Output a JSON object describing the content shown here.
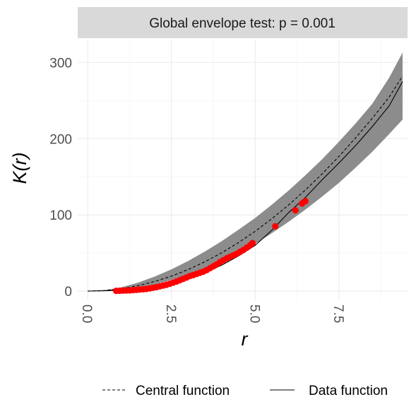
{
  "chart_data": {
    "type": "line",
    "title": "Global envelope test: p = 0.001",
    "xlabel": "r",
    "ylabel": "K(r)",
    "xlim": [
      -0.3,
      9.55
    ],
    "ylim": [
      -12,
      330
    ],
    "x_ticks": [
      0,
      2.5,
      5,
      7.5
    ],
    "x_tick_labels": [
      "0.0",
      "2.5",
      "5.0",
      "7.5"
    ],
    "y_ticks": [
      0,
      100,
      200,
      300
    ],
    "y_tick_labels": [
      "0",
      "100",
      "200",
      "300"
    ],
    "grid": true,
    "legend_position": "bottom",
    "envelope": {
      "r": [
        0,
        0.5,
        1.0,
        1.5,
        2.0,
        2.5,
        3.0,
        3.5,
        4.0,
        4.5,
        5.0,
        5.5,
        6.0,
        6.5,
        7.0,
        7.5,
        8.0,
        8.5,
        9.0,
        9.4
      ],
      "lo": [
        0,
        0.3,
        1.6,
        4.2,
        8.5,
        14.5,
        21.5,
        29.5,
        39.0,
        50.0,
        62.0,
        76.0,
        91.0,
        107.0,
        124.0,
        142.0,
        162.0,
        183.0,
        206.0,
        225.0
      ],
      "hi": [
        0,
        1.1,
        4.9,
        11.0,
        19.0,
        28.5,
        39.5,
        52.0,
        65.5,
        80.5,
        96.0,
        113.5,
        132.0,
        152.0,
        173.0,
        196.0,
        220.0,
        246.0,
        280.0,
        313.0
      ],
      "color": "#8c8c8c"
    },
    "series": [
      {
        "name": "Central function",
        "linetype": "dashed",
        "color": "#000000",
        "x": [
          0,
          0.5,
          1.0,
          1.5,
          2.0,
          2.5,
          3.0,
          3.5,
          4.0,
          4.5,
          5.0,
          5.5,
          6.0,
          6.5,
          7.0,
          7.5,
          8.0,
          8.5,
          9.0,
          9.4
        ],
        "y": [
          0,
          0.8,
          3.1,
          7.1,
          12.6,
          19.6,
          28.3,
          38.5,
          50.3,
          63.6,
          78.5,
          95.0,
          113.1,
          132.7,
          153.9,
          176.7,
          201.1,
          226.9,
          254.5,
          282.0
        ]
      },
      {
        "name": "Data function",
        "linetype": "solid",
        "color": "#000000",
        "x": [
          0,
          0.4,
          0.8,
          1.0,
          1.3,
          1.6,
          2.0,
          2.5,
          3.0,
          3.5,
          4.0,
          4.5,
          5.0,
          5.5,
          6.0,
          6.5,
          7.0,
          7.5,
          8.0,
          8.5,
          9.0,
          9.4
        ],
        "y": [
          0,
          0.3,
          0.8,
          1.2,
          1.8,
          3.0,
          5.5,
          10.0,
          17.0,
          24.0,
          34.0,
          46.0,
          60.0,
          80.0,
          103.0,
          123.0,
          146.0,
          168.0,
          191.0,
          216.0,
          243.0,
          275.0
        ]
      }
    ],
    "points": {
      "color": "#ff0000",
      "x": [
        0.85,
        0.95,
        1.05,
        1.15,
        1.25,
        1.35,
        1.45,
        1.55,
        1.65,
        1.75,
        1.85,
        1.95,
        2.05,
        2.15,
        2.25,
        2.35,
        2.45,
        2.55,
        2.65,
        2.75,
        2.85,
        2.95,
        3.05,
        3.15,
        3.25,
        3.35,
        3.45,
        3.55,
        3.65,
        3.75,
        3.85,
        3.95,
        4.05,
        4.15,
        4.25,
        4.35,
        4.45,
        4.55,
        4.65,
        4.75,
        4.85,
        4.92,
        5.6,
        6.2,
        6.4,
        6.5
      ],
      "y": [
        0.3,
        0.4,
        0.6,
        0.8,
        1.0,
        1.3,
        1.6,
        2.0,
        2.4,
        2.8,
        3.5,
        4.3,
        5.2,
        6.2,
        7.2,
        8.3,
        9.5,
        11.0,
        12.6,
        14.3,
        16.0,
        17.8,
        19.7,
        21.0,
        22.5,
        24.0,
        25.5,
        27.5,
        30.0,
        32.5,
        35.0,
        38.0,
        40.5,
        43.0,
        45.0,
        47.0,
        49.0,
        51.5,
        54.0,
        57.0,
        60.0,
        63.0,
        85.0,
        106.0,
        115.0,
        118.0
      ]
    }
  }
}
